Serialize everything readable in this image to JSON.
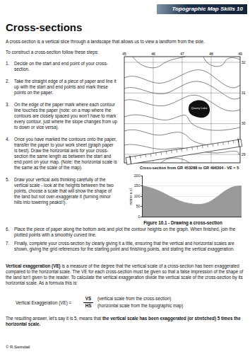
{
  "header": {
    "banner": "Topographic Map Skills 10",
    "title": "Cross-sections"
  },
  "intro": "A cross-section is a vertical slice through a landscape that allows us to view a landform from the side.",
  "steps_lead": "To construct a cross-section follow these steps:",
  "steps": [
    {
      "number": "1.",
      "text": "Decide on the start and end point of your cross-section."
    },
    {
      "number": "2.",
      "text": "Take the straight edge of a piece of paper and line it up with the start and end points and mark these points on the paper."
    },
    {
      "number": "3.",
      "text": "On the edge of the paper mark where each contour line touches the paper (note: on a map where the contours are closely spaced you won't have to mark every contour, just where the slope changes from up to down or vice versa)."
    },
    {
      "number": "4.",
      "text": "Once you have marked the contours onto the paper, transfer the paper to your work sheet (graph paper is best). Draw the horizontal axis for your cross-section the same length as between the start and end point on your map. (Note: the horizontal scale is the same as the scale of the map)."
    },
    {
      "number": "5.",
      "text": "Draw your vertical axis thinking carefully of the vertical scale - look at the heights between the two points, choose a scale that will show the shape of the land but not over-exaggerate it (turning minor hills into towering peaks!!)."
    },
    {
      "number": "6.",
      "text": "Place the piece of paper along the bottom axis and plot the contour heights on the graph. When finished, join the plotted points with a smoothly curved line."
    },
    {
      "number": "7.",
      "text": "Finally, complete your cross-section by clearly giving it a title, ensuring that the vertical and horizontal scales are shown, giving the grid references for the starting point and finishing points, and stating the vertical exaggeration."
    }
  ],
  "map": {
    "eastings": [
      45,
      46,
      47,
      48,
      49
    ],
    "northings": [
      32,
      31,
      30,
      29
    ],
    "label": "Quarry Lake"
  },
  "chart_data": {
    "type": "area",
    "title": "Cross-section from GR 453288 to GR 496304 - VE = 5",
    "ylabel": "metres a.s.l.",
    "x": [
      0,
      1,
      2,
      3,
      4,
      5,
      6,
      7,
      8,
      9,
      10,
      11,
      12
    ],
    "values": [
      150,
      140,
      125,
      105,
      85,
      70,
      62,
      60,
      70,
      95,
      125,
      145,
      150
    ],
    "xlim": [
      0,
      12
    ],
    "ylim": [
      0,
      200
    ],
    "yticks": [
      0,
      50,
      100,
      150,
      200
    ],
    "tick_labels": "y",
    "grid": true,
    "color": "#9a9a9a"
  },
  "figure_caption": "Figure 10.1 - Drawing a cross-section",
  "ve_paragraph": [
    {
      "text": "Vertical exaggeration (VE)",
      "bold": true
    },
    {
      "text": " is a measure of the degree that the vertical scale of a cross-section has been exaggerated compared to the horizontal scale. The VE for each cross-section must be given so that a false impression of the shape of the land isn't given to the reader. To calculate the vertical exaggeration divide the vertical scale of the cross-section by its horizontal scale. As a formula this is:",
      "bold": false
    }
  ],
  "formula": {
    "left": "Vertical Exaggeration (VE) =",
    "numerator": "VS",
    "denominator": "HS",
    "numerator_note": "(vertical scale from the cross-section)",
    "denominator_note": "(horizontal scale from the topographic map)"
  },
  "conclusion": [
    {
      "text": "The resulting answer, let's say it is 5, means that ",
      "bold": false
    },
    {
      "text": "the vertical scale has been exaggerated (or stretched) 5 times the horizontal scale.",
      "bold": true
    }
  ],
  "footer": "© R.Swindail"
}
